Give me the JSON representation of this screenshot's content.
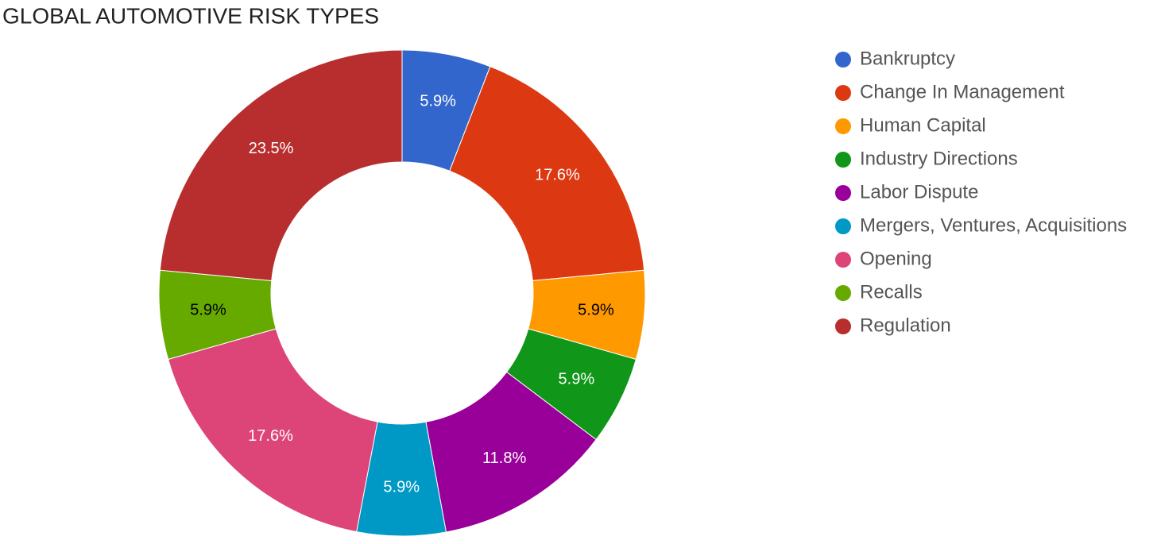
{
  "chart_data": {
    "type": "donut",
    "title": "GLOBAL AUTOMOTIVE RISK TYPES",
    "categories": [
      "Bankruptcy",
      "Change In Management",
      "Human Capital",
      "Industry Directions",
      "Labor Dispute",
      "Mergers, Ventures, Acquisitions",
      "Opening",
      "Recalls",
      "Regulation"
    ],
    "values": [
      5.9,
      17.6,
      5.9,
      5.9,
      11.8,
      5.9,
      17.6,
      5.9,
      23.5
    ],
    "value_labels": [
      "5.9%",
      "17.6%",
      "5.9%",
      "5.9%",
      "11.8%",
      "5.9%",
      "17.6%",
      "5.9%",
      "23.5%"
    ],
    "colors": [
      "#3366cc",
      "#dc3912",
      "#ff9900",
      "#109618",
      "#990099",
      "#0099c6",
      "#dd4477",
      "#66aa00",
      "#b82e2e"
    ],
    "label_colors": [
      "#ffffff",
      "#ffffff",
      "#000000",
      "#ffffff",
      "#ffffff",
      "#ffffff",
      "#ffffff",
      "#000000",
      "#ffffff"
    ],
    "legend": "right"
  }
}
